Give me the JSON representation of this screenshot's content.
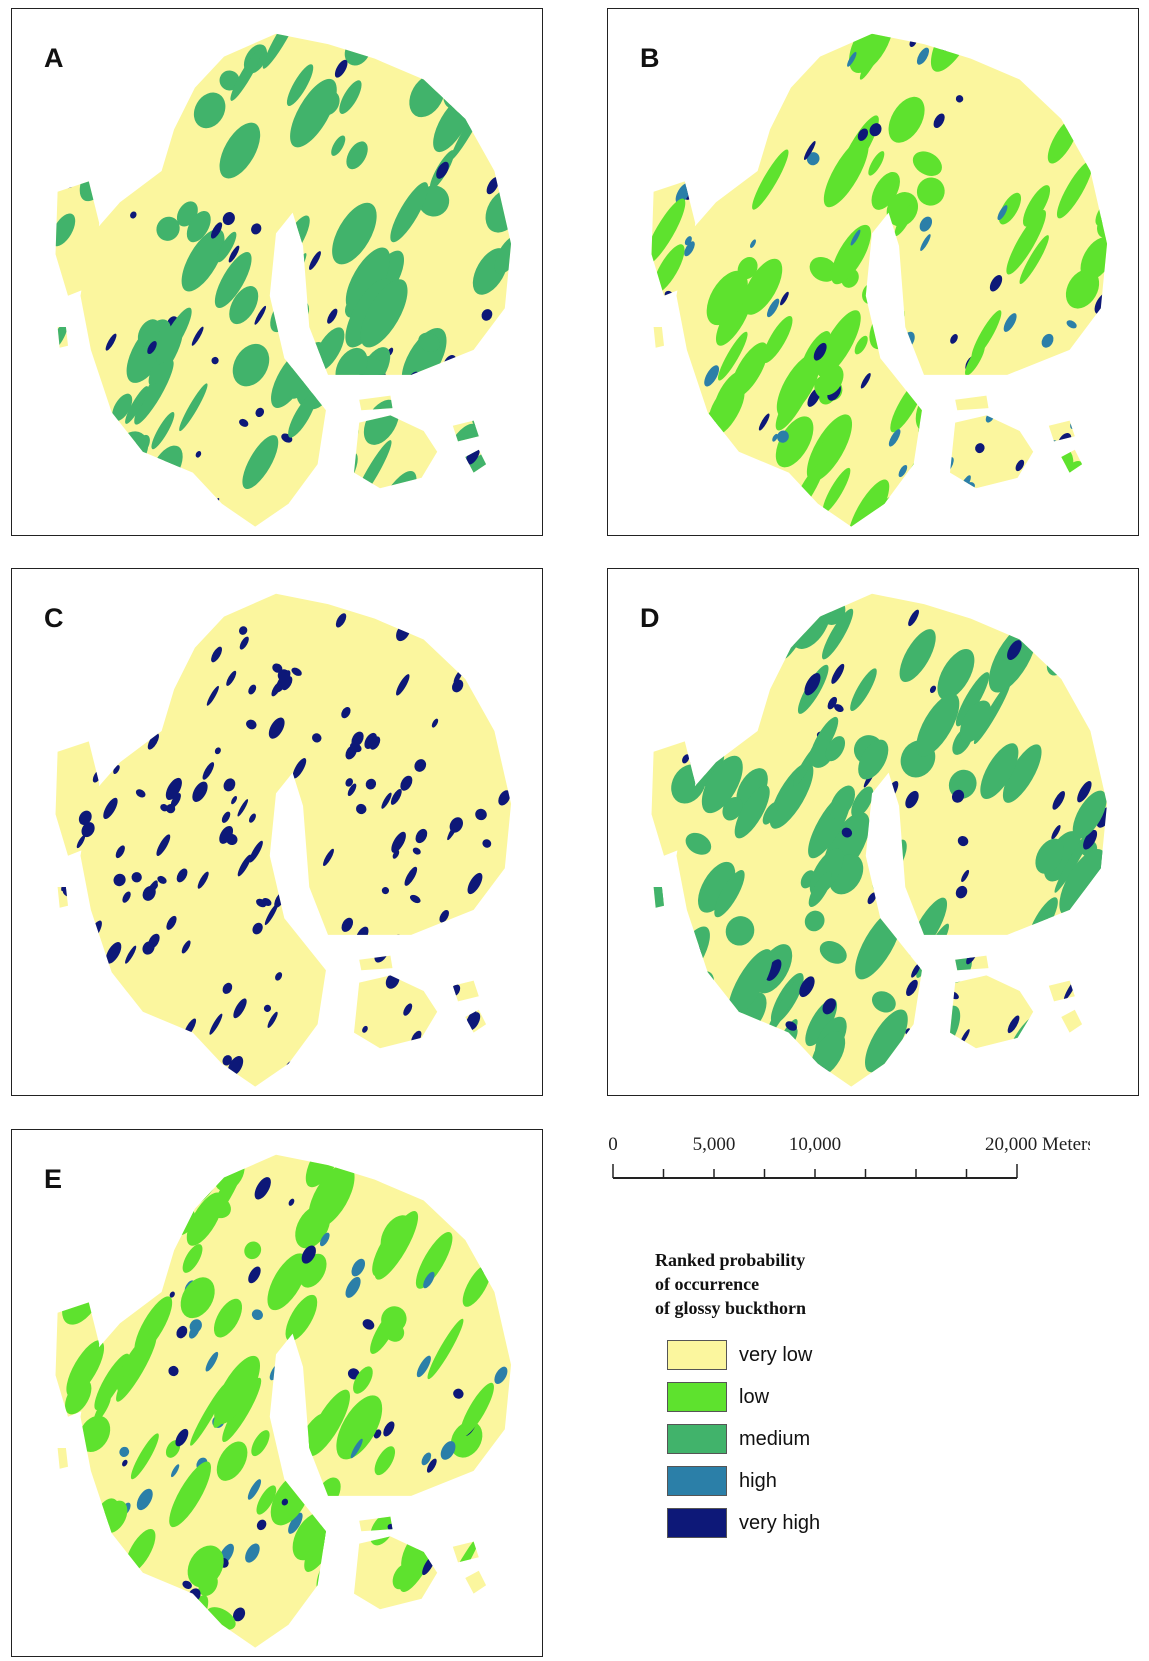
{
  "panels": [
    {
      "label": "A"
    },
    {
      "label": "B"
    },
    {
      "label": "C"
    },
    {
      "label": "D"
    },
    {
      "label": "E"
    }
  ],
  "scale_bar": {
    "labels": [
      "0",
      "5,000",
      "10,000",
      "20,000 Meters"
    ]
  },
  "legend": {
    "title": [
      "Ranked probability",
      "of occurrence",
      "of glossy buckthorn"
    ],
    "items": [
      {
        "label": "very low",
        "color": "#fbf69e"
      },
      {
        "label": "low",
        "color": "#5ee22e"
      },
      {
        "label": "medium",
        "color": "#41b36b"
      },
      {
        "label": "high",
        "color": "#2b7fa8"
      },
      {
        "label": "very high",
        "color": "#0d1878"
      }
    ]
  }
}
